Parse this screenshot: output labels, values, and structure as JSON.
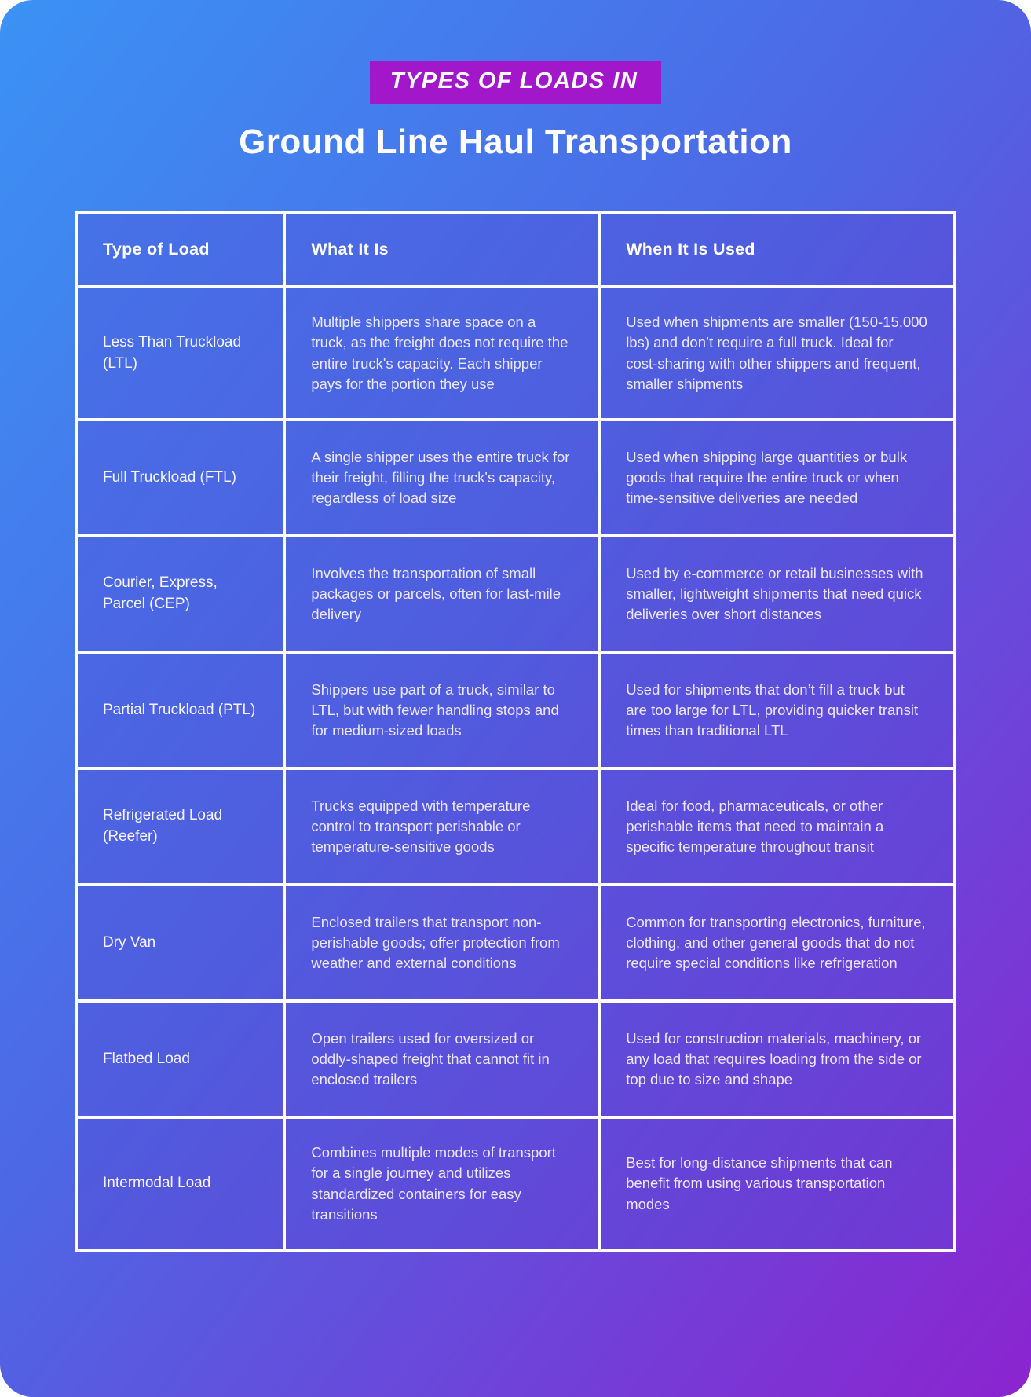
{
  "page": {
    "badge_label": "TYPES OF LOADS IN",
    "title": "Ground Line Haul Transportation"
  },
  "table": {
    "headers": {
      "type": "Type of Load",
      "what": "What It Is",
      "when": "When It Is Used"
    },
    "rows": [
      {
        "type": "Less Than Truckload (LTL)",
        "what": "Multiple shippers share space on a truck, as the freight does not require the entire truck's capacity. Each shipper pays for the portion they use",
        "when": "Used when shipments are smaller (150-15,000 lbs) and don’t require a full truck. Ideal for cost-sharing with other shippers and frequent, smaller shipments"
      },
      {
        "type": "Full Truckload (FTL)",
        "what": "A single shipper uses the entire truck for their freight, filling the truck's capacity, regardless of load size",
        "when": "Used when shipping large quantities or bulk goods that require the entire truck or when time-sensitive deliveries are needed"
      },
      {
        "type": "Courier, Express, Parcel (CEP)",
        "what": "Involves the transportation of small packages or parcels, often for last-mile delivery",
        "when": "Used by e-commerce or retail businesses with smaller, lightweight shipments that need quick deliveries over short distances"
      },
      {
        "type": "Partial Truckload (PTL)",
        "what": "Shippers use part of a truck, similar to LTL, but with fewer handling stops and for medium-sized loads",
        "when": "Used for shipments that don’t fill a truck but are too large for LTL, providing quicker transit times than traditional LTL"
      },
      {
        "type": "Refrigerated Load (Reefer)",
        "what": "Trucks equipped with temperature control to transport perishable or temperature-sensitive goods",
        "when": "Ideal for food, pharmaceuticals, or other perishable items that need to maintain a specific temperature throughout transit"
      },
      {
        "type": "Dry Van",
        "what": "Enclosed trailers that transport non-perishable goods; offer protection from weather and external conditions",
        "when": "Common for transporting electronics, furniture, clothing, and other general goods that do not require special conditions like refrigeration"
      },
      {
        "type": "Flatbed Load",
        "what": "Open trailers used for oversized or oddly-shaped freight that cannot fit in enclosed trailers",
        "when": "Used for construction materials, machinery, or any load that requires loading from the side or top due to size and shape"
      },
      {
        "type": "Intermodal Load",
        "what": "Combines multiple modes of transport for a single journey and utilizes standardized containers for easy transitions",
        "when": "Best for long-distance shipments that can benefit from using various transportation modes"
      }
    ]
  },
  "colors": {
    "gradient_start": "#3B92F5",
    "gradient_mid": "#4E66E4",
    "gradient_end": "#8B24D0",
    "badge_background": "#A117C9",
    "cell_overlay": "rgba(85,70,210,0.32)",
    "border": "#FFFFFF",
    "text_primary": "#FFFFFF",
    "text_body": "#EBE6FB"
  }
}
